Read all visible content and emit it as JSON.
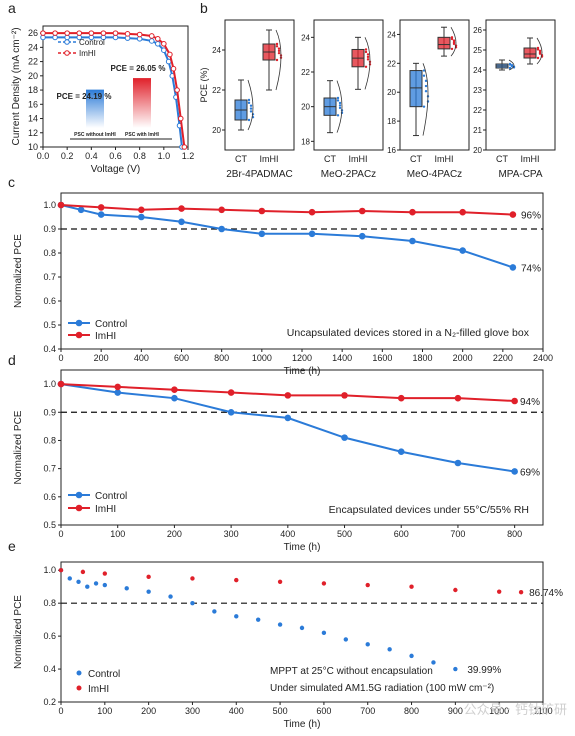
{
  "watermark": "公众号 · 钙钛矿研",
  "colors": {
    "control": "#2b7bd8",
    "imhi": "#e0202a",
    "threshold": "#111111"
  },
  "chart_data": [
    {
      "panel": "a",
      "type": "line",
      "xlabel": "Voltage (V)",
      "ylabel": "Current Density (mA cm⁻²)",
      "xlim": [
        0.0,
        1.2
      ],
      "ylim": [
        10,
        27
      ],
      "xticks": [
        "0.0",
        "0.2",
        "0.4",
        "0.6",
        "0.8",
        "1.0",
        "1.2"
      ],
      "yticks": [
        "10",
        "12",
        "14",
        "16",
        "18",
        "20",
        "22",
        "24",
        "26"
      ],
      "legend": [
        "Control",
        "ImHI"
      ],
      "series": [
        {
          "name": "Control",
          "x": [
            0,
            0.1,
            0.2,
            0.3,
            0.4,
            0.5,
            0.6,
            0.7,
            0.8,
            0.9,
            0.95,
            1.0,
            1.04,
            1.07,
            1.1,
            1.13,
            1.15
          ],
          "y": [
            25.4,
            25.4,
            25.4,
            25.4,
            25.4,
            25.4,
            25.4,
            25.3,
            25.2,
            24.9,
            24.5,
            23.6,
            22.0,
            20.0,
            17.0,
            13.0,
            10.0
          ]
        },
        {
          "name": "ImHI",
          "x": [
            0,
            0.1,
            0.2,
            0.3,
            0.4,
            0.5,
            0.6,
            0.7,
            0.8,
            0.9,
            0.95,
            1.0,
            1.05,
            1.08,
            1.11,
            1.14,
            1.17
          ],
          "y": [
            26.0,
            26.0,
            26.0,
            26.0,
            26.0,
            26.0,
            26.0,
            25.9,
            25.8,
            25.6,
            25.2,
            24.5,
            23.0,
            21.0,
            18.0,
            14.0,
            10.0
          ]
        }
      ],
      "inset": {
        "bars": [
          {
            "label": "PSC without ImHI",
            "annotation": "PCE = 24.19 %",
            "value": 24.19
          },
          {
            "label": "PSC with ImHI",
            "annotation": "PCE = 26.05 %",
            "value": 26.05
          }
        ]
      }
    },
    {
      "panel": "b",
      "type": "box",
      "ylabel": "PCE (%)",
      "categories": [
        "CT",
        "ImHI"
      ],
      "groups": [
        {
          "title": "2Br-4PADMAC",
          "ylim": [
            19,
            25.5
          ],
          "yticks": [
            "20",
            "22",
            "24"
          ],
          "CT": [
            20.0,
            20.5,
            21.0,
            21.5,
            22.5
          ],
          "ImHI": [
            22.0,
            23.5,
            23.9,
            24.3,
            25.0
          ]
        },
        {
          "title": "MeO-2PACz",
          "ylim": [
            17.5,
            25
          ],
          "yticks": [
            "18",
            "20",
            "22",
            "24"
          ],
          "CT": [
            18.5,
            19.5,
            20.0,
            20.5,
            21.5
          ],
          "ImHI": [
            21.0,
            22.3,
            22.8,
            23.3,
            24.0
          ]
        },
        {
          "title": "MeO-4PACz",
          "ylim": [
            16,
            25
          ],
          "yticks": [
            "16",
            "18",
            "20",
            "22",
            "24"
          ],
          "CT": [
            17.0,
            19.0,
            20.3,
            21.5,
            22.0
          ],
          "ImHI": [
            22.5,
            23.0,
            23.3,
            23.8,
            24.5
          ]
        },
        {
          "title": "MPA-CPA",
          "ylim": [
            20,
            26.5
          ],
          "yticks": [
            "20",
            "21",
            "22",
            "23",
            "24",
            "25",
            "26"
          ],
          "CT": [
            24.0,
            24.1,
            24.2,
            24.3,
            24.5
          ],
          "ImHI": [
            24.3,
            24.6,
            24.8,
            25.1,
            25.6
          ]
        }
      ]
    },
    {
      "panel": "c",
      "type": "line",
      "xlabel": "Time (h)",
      "ylabel": "Normalized PCE",
      "xlim": [
        0,
        2400
      ],
      "ylim": [
        0.4,
        1.05
      ],
      "xticks": [
        "0",
        "200",
        "400",
        "600",
        "800",
        "1000",
        "1200",
        "1400",
        "1600",
        "1800",
        "2000",
        "2200",
        "2400"
      ],
      "yticks": [
        "0.4",
        "0.5",
        "0.6",
        "0.7",
        "0.8",
        "0.9",
        "1.0"
      ],
      "threshold": 0.9,
      "annotation": "Uncapsulated devices stored in a N₂-filled glove box",
      "end_labels": [
        "74%",
        "96%"
      ],
      "legend": [
        "Control",
        "ImHI"
      ],
      "series": [
        {
          "name": "Control",
          "x": [
            0,
            100,
            200,
            400,
            600,
            800,
            1000,
            1250,
            1500,
            1750,
            2000,
            2250
          ],
          "y": [
            1.0,
            0.98,
            0.96,
            0.95,
            0.93,
            0.9,
            0.88,
            0.88,
            0.87,
            0.85,
            0.81,
            0.74
          ]
        },
        {
          "name": "ImHI",
          "x": [
            0,
            200,
            400,
            600,
            800,
            1000,
            1250,
            1500,
            1750,
            2000,
            2250
          ],
          "y": [
            1.0,
            0.99,
            0.98,
            0.985,
            0.98,
            0.975,
            0.97,
            0.975,
            0.97,
            0.97,
            0.96
          ]
        }
      ]
    },
    {
      "panel": "d",
      "type": "line",
      "xlabel": "Time (h)",
      "ylabel": "Normalized PCE",
      "xlim": [
        0,
        850
      ],
      "ylim": [
        0.5,
        1.05
      ],
      "xticks": [
        "0",
        "100",
        "200",
        "300",
        "400",
        "500",
        "600",
        "700",
        "800"
      ],
      "yticks": [
        "0.5",
        "0.6",
        "0.7",
        "0.8",
        "0.9",
        "1.0"
      ],
      "threshold": 0.9,
      "annotation": "Encapsulated devices under 55°C/55% RH",
      "end_labels": [
        "69%",
        "94%"
      ],
      "legend": [
        "Control",
        "ImHI"
      ],
      "series": [
        {
          "name": "Control",
          "x": [
            0,
            100,
            200,
            300,
            400,
            500,
            600,
            700,
            800
          ],
          "y": [
            1.0,
            0.97,
            0.95,
            0.9,
            0.88,
            0.81,
            0.76,
            0.72,
            0.69
          ]
        },
        {
          "name": "ImHI",
          "x": [
            0,
            100,
            200,
            300,
            400,
            500,
            600,
            700,
            800
          ],
          "y": [
            1.0,
            0.99,
            0.98,
            0.97,
            0.96,
            0.96,
            0.95,
            0.95,
            0.94
          ]
        }
      ]
    },
    {
      "panel": "e",
      "type": "scatter",
      "xlabel": "Time (h)",
      "ylabel": "Normalized PCE",
      "xlim": [
        0,
        1100
      ],
      "ylim": [
        0.2,
        1.05
      ],
      "xticks": [
        "0",
        "100",
        "200",
        "300",
        "400",
        "500",
        "600",
        "700",
        "800",
        "900",
        "1000",
        "1100"
      ],
      "yticks": [
        "0.2",
        "0.4",
        "0.6",
        "0.8",
        "1.0"
      ],
      "threshold": 0.8,
      "annotation_lines": [
        "MPPT at 25°C  without encapsulation",
        "Under simulated AM1.5G radiation (100 mW cm⁻²)"
      ],
      "end_labels": [
        "39.99%",
        "86.74%"
      ],
      "legend": [
        "Control",
        "ImHI"
      ],
      "series": [
        {
          "name": "Control",
          "x": [
            0,
            20,
            40,
            60,
            80,
            100,
            150,
            200,
            250,
            300,
            350,
            400,
            450,
            500,
            550,
            600,
            650,
            700,
            750,
            800,
            850,
            900
          ],
          "y": [
            1.0,
            0.95,
            0.93,
            0.9,
            0.92,
            0.91,
            0.89,
            0.87,
            0.84,
            0.8,
            0.75,
            0.72,
            0.7,
            0.67,
            0.65,
            0.62,
            0.58,
            0.55,
            0.52,
            0.48,
            0.44,
            0.4
          ]
        },
        {
          "name": "ImHI",
          "x": [
            0,
            50,
            100,
            200,
            300,
            400,
            500,
            600,
            700,
            800,
            900,
            1000,
            1050
          ],
          "y": [
            1.0,
            0.99,
            0.98,
            0.96,
            0.95,
            0.94,
            0.93,
            0.92,
            0.91,
            0.9,
            0.88,
            0.87,
            0.867
          ]
        }
      ]
    }
  ]
}
